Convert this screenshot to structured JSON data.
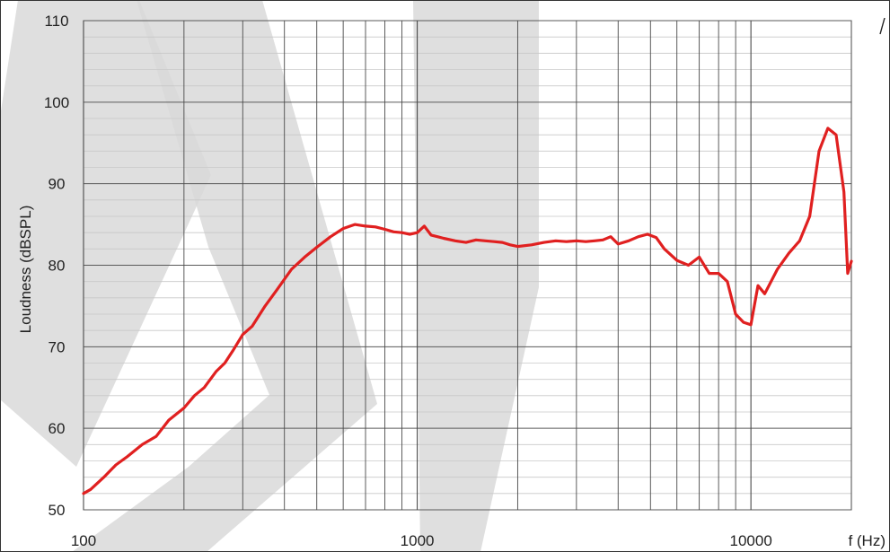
{
  "chart_data": {
    "type": "line",
    "title": "",
    "xlabel": "f (Hz)",
    "ylabel": "Loudness (dBSPL)",
    "x_scale": "log",
    "xlim": [
      100,
      20000
    ],
    "ylim": [
      50,
      110
    ],
    "x_tick_labels": [
      {
        "value": 100,
        "label": "100"
      },
      {
        "value": 1000,
        "label": "1000"
      },
      {
        "value": 10000,
        "label": "10000"
      }
    ],
    "y_tick_labels": [
      {
        "value": 50,
        "label": "50"
      },
      {
        "value": 60,
        "label": "60"
      },
      {
        "value": 70,
        "label": "70"
      },
      {
        "value": 80,
        "label": "80"
      },
      {
        "value": 90,
        "label": "90"
      },
      {
        "value": 100,
        "label": "100"
      },
      {
        "value": 110,
        "label": "110"
      }
    ],
    "grid": true,
    "legend": "none",
    "colors": {
      "series": "#e02020",
      "grid_major": "#5a5a5a",
      "grid_minor": "#c8c8c8",
      "watermark": "#d9d9d9"
    },
    "series": [
      {
        "x": [
          100,
          105,
          115,
          125,
          135,
          150,
          165,
          180,
          200,
          215,
          230,
          250,
          265,
          280,
          300,
          320,
          350,
          380,
          420,
          460,
          500,
          550,
          600,
          650,
          700,
          750,
          800,
          850,
          900,
          950,
          1000,
          1050,
          1100,
          1150,
          1200,
          1300,
          1400,
          1500,
          1600,
          1700,
          1800,
          1900,
          2000,
          2200,
          2400,
          2600,
          2800,
          3000,
          3200,
          3400,
          3600,
          3800,
          4000,
          4300,
          4600,
          4900,
          5200,
          5500,
          6000,
          6500,
          7000,
          7500,
          8000,
          8500,
          9000,
          9500,
          10000,
          10500,
          11000,
          12000,
          13000,
          14000,
          15000,
          16000,
          17000,
          18000,
          19000,
          19500,
          20000
        ],
        "y": [
          52,
          52.5,
          54,
          55.5,
          56.5,
          58,
          59,
          61,
          62.5,
          64,
          65,
          67,
          68,
          69.5,
          71.5,
          72.5,
          75,
          77,
          79.5,
          81,
          82.2,
          83.5,
          84.5,
          85,
          84.8,
          84.7,
          84.4,
          84.1,
          84,
          83.8,
          84,
          84.8,
          83.7,
          83.5,
          83.3,
          83,
          82.8,
          83.1,
          83,
          82.9,
          82.8,
          82.5,
          82.3,
          82.5,
          82.8,
          83,
          82.9,
          83,
          82.9,
          83,
          83.1,
          83.5,
          82.6,
          83,
          83.5,
          83.8,
          83.4,
          82,
          80.6,
          80,
          81,
          79,
          79,
          78,
          74,
          73,
          72.7,
          77.5,
          76.5,
          79.5,
          81.5,
          83,
          86,
          94,
          96.8,
          96,
          89,
          79,
          80.5
        ]
      }
    ]
  }
}
